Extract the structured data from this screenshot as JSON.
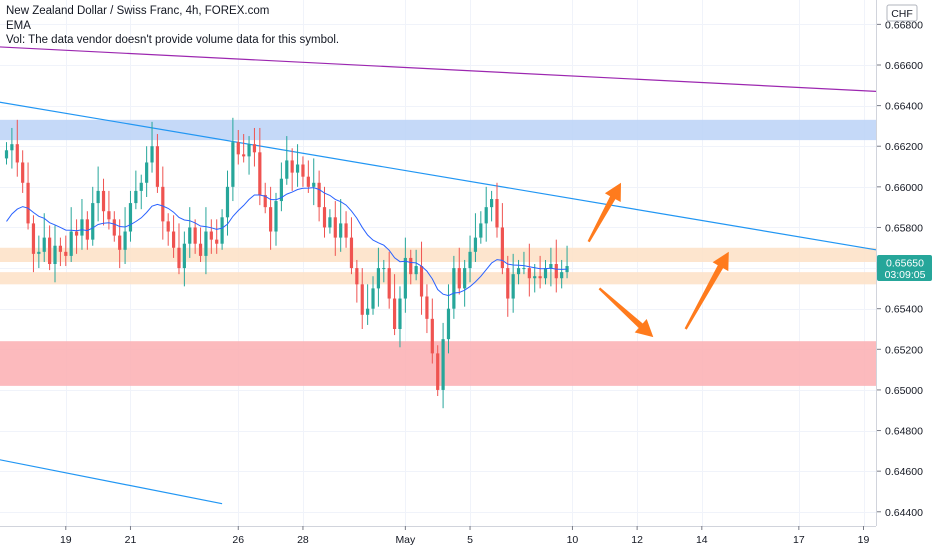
{
  "legend": {
    "title": "New Zealand Dollar / Swiss Franc, 4h, FOREX.com",
    "indicator": "EMA",
    "volume_note": "Vol: The data vendor doesn't provide volume data for this symbol."
  },
  "price_scale": {
    "currency": "CHF",
    "last_price": "0.65650",
    "countdown": "03:09:05"
  },
  "colors": {
    "bull": "#26a69a",
    "bear": "#ef5350",
    "ema": "#2962ff",
    "trendline": "#2196f3",
    "upper_trendline": "#9c27b0",
    "resistance_zone": "#bbd2f7",
    "support_zone": "#fbaeb1",
    "range_zone": "#fde1c6",
    "arrows": "#ff7b1d",
    "last_price_bg": "#26a69a"
  },
  "chart_data": {
    "type": "candlestick",
    "title": "New Zealand Dollar / Swiss Franc, 4h, FOREX.com",
    "ylim": [
      0.6433,
      0.6692
    ],
    "y_ticks": [
      0.644,
      0.646,
      0.648,
      0.65,
      0.652,
      0.654,
      0.656,
      0.658,
      0.66,
      0.662,
      0.664,
      0.666,
      0.668
    ],
    "y_tick_labels": [
      "0.64400",
      "0.64600",
      "0.64800",
      "0.65000",
      "0.65200",
      "0.65400",
      "0.65600",
      "0.65800",
      "0.66000",
      "0.66200",
      "0.66400",
      "0.66600",
      "0.66800"
    ],
    "x_ticks": [
      {
        "label": "19",
        "i": 11
      },
      {
        "label": "21",
        "i": 23
      },
      {
        "label": "26",
        "i": 43
      },
      {
        "label": "28",
        "i": 55
      },
      {
        "label": "May",
        "i": 74
      },
      {
        "label": "5",
        "i": 86
      },
      {
        "label": "10",
        "i": 105
      },
      {
        "label": "12",
        "i": 117
      },
      {
        "label": "14",
        "i": 129
      },
      {
        "label": "17",
        "i": 147
      },
      {
        "label": "19",
        "i": 159
      }
    ],
    "closes": [
      0.6618,
      0.6621,
      0.6612,
      0.6602,
      0.6582,
      0.6567,
      0.6568,
      0.6575,
      0.6562,
      0.6571,
      0.6568,
      0.6566,
      0.6578,
      0.6576,
      0.6584,
      0.6574,
      0.6592,
      0.6598,
      0.6588,
      0.6584,
      0.6576,
      0.6569,
      0.6578,
      0.6592,
      0.6598,
      0.6602,
      0.6612,
      0.662,
      0.66,
      0.6583,
      0.6578,
      0.657,
      0.656,
      0.6572,
      0.658,
      0.6572,
      0.6566,
      0.6578,
      0.6574,
      0.6572,
      0.6585,
      0.66,
      0.6622,
      0.6616,
      0.6615,
      0.6621,
      0.6617,
      0.6596,
      0.659,
      0.6578,
      0.6593,
      0.6604,
      0.6613,
      0.6607,
      0.6611,
      0.6605,
      0.66,
      0.6602,
      0.659,
      0.658,
      0.6585,
      0.6575,
      0.6582,
      0.6575,
      0.656,
      0.6552,
      0.6537,
      0.654,
      0.655,
      0.656,
      0.656,
      0.6545,
      0.653,
      0.6545,
      0.6565,
      0.6557,
      0.6561,
      0.6546,
      0.6535,
      0.6518,
      0.65,
      0.6525,
      0.654,
      0.656,
      0.655,
      0.656,
      0.6568,
      0.6575,
      0.6582,
      0.659,
      0.6594,
      0.658,
      0.656,
      0.6545,
      0.6557,
      0.656,
      0.656,
      0.6555,
      0.6556,
      0.6555,
      0.656,
      0.6562,
      0.6555,
      0.6558,
      0.6561
    ],
    "ema_label": "EMA",
    "zones": [
      {
        "name": "resistance",
        "from": 0.6623,
        "to": 0.6633
      },
      {
        "name": "range-upper",
        "from": 0.6563,
        "to": 0.657
      },
      {
        "name": "range-lower",
        "from": 0.6552,
        "to": 0.6558
      },
      {
        "name": "support",
        "from": 0.6502,
        "to": 0.6524
      }
    ],
    "trendlines": [
      {
        "name": "descending-trendline",
        "from": {
          "i": -2,
          "y": 0.6642
        },
        "to": {
          "i": 166,
          "y": 0.6569
        }
      },
      {
        "name": "upper-purple-line",
        "from": {
          "i": -2,
          "y": 0.6669
        },
        "to": {
          "i": 166,
          "y": 0.6647
        }
      },
      {
        "name": "lower-trendline",
        "from": {
          "i": -2,
          "y": 0.6466
        },
        "to": {
          "i": 40,
          "y": 0.6444
        }
      }
    ],
    "arrows": [
      {
        "name": "arrow-up-breakout",
        "from": {
          "i": 108,
          "y": 0.6573
        },
        "to": {
          "i": 114,
          "y": 0.6602
        }
      },
      {
        "name": "arrow-down",
        "from": {
          "i": 110,
          "y": 0.655
        },
        "to": {
          "i": 120,
          "y": 0.6526
        }
      },
      {
        "name": "arrow-up-rebound",
        "from": {
          "i": 126,
          "y": 0.653
        },
        "to": {
          "i": 134,
          "y": 0.6568
        }
      }
    ]
  }
}
